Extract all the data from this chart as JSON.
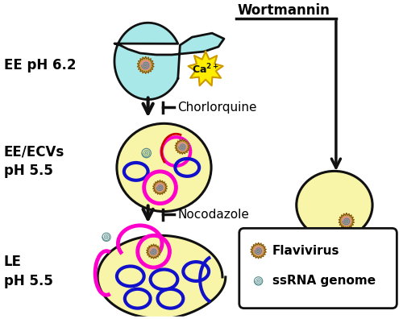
{
  "bg_color": "#ffffff",
  "cell_color": "#a8e8e8",
  "endosome_color": "#f8f5a8",
  "magenta": "#ff00cc",
  "blue_oval": "#1111cc",
  "virus_outer": "#c8a040",
  "virus_pink": "#e09090",
  "virus_teal": "#508888",
  "arrow_color": "#111111",
  "wortmannin_label": "Wortmannin",
  "ee_label": "EE pH 6.2",
  "ee_ecv_label": "EE/ECVs\npH 5.5",
  "le_label": "LE\npH 5.5",
  "chloroquine_label": "Chorlorquine",
  "nocodazole_label": "Nocodazole",
  "flavivirus_label": "Flavivirus",
  "ssrna_label": "ssRNA genome",
  "star_color": "#ffee00",
  "star_edge": "#cc9900",
  "red_line": "#cc0000"
}
